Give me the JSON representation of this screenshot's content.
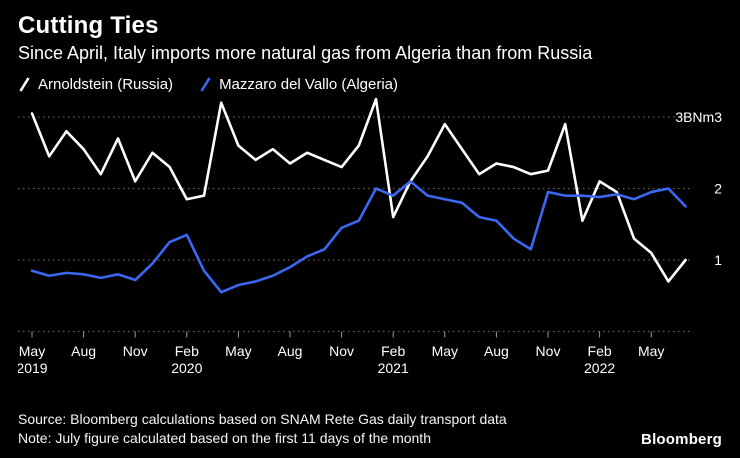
{
  "header": {
    "title": "Cutting Ties",
    "subtitle": "Since April, Italy imports more natural gas from Algeria than from Russia"
  },
  "legend": [
    {
      "label": "Arnoldstein (Russia)",
      "color": "#ffffff"
    },
    {
      "label": "Mazzaro del Vallo (Algeria)",
      "color": "#3a68f2"
    }
  ],
  "footer": {
    "source": "Source: Bloomberg calculations based on SNAM Rete Gas daily transport data",
    "note": "Note: July figure calculated based on the first 11 days of the month",
    "brand": "Bloomberg"
  },
  "chart_data": {
    "type": "line",
    "title": "Cutting Ties",
    "subtitle": "Since April, Italy imports more natural gas from Algeria than from Russia",
    "unit_label": "3BNm3",
    "grid": "dotted-horizontal",
    "legend_position": "top-left",
    "y_axis": {
      "ylim": [
        0,
        3.3
      ],
      "gridlines": [
        1,
        2,
        3
      ],
      "right_labels": [
        {
          "value": 3,
          "label": "3BNm3"
        },
        {
          "value": 2,
          "label": "2"
        },
        {
          "value": 1,
          "label": "1"
        }
      ]
    },
    "x_months": [
      "May 2019",
      "Jun 2019",
      "Jul 2019",
      "Aug 2019",
      "Sep 2019",
      "Oct 2019",
      "Nov 2019",
      "Dec 2019",
      "Jan 2020",
      "Feb 2020",
      "Mar 2020",
      "Apr 2020",
      "May 2020",
      "Jun 2020",
      "Jul 2020",
      "Aug 2020",
      "Sep 2020",
      "Oct 2020",
      "Nov 2020",
      "Dec 2020",
      "Jan 2021",
      "Feb 2021",
      "Mar 2021",
      "Apr 2021",
      "May 2021",
      "Jun 2021",
      "Jul 2021",
      "Aug 2021",
      "Sep 2021",
      "Oct 2021",
      "Nov 2021",
      "Dec 2021",
      "Jan 2022",
      "Feb 2022",
      "Mar 2022",
      "Apr 2022",
      "May 2022",
      "Jun 2022",
      "Jul 2022"
    ],
    "x_ticks": [
      {
        "index": 0,
        "month": "May",
        "year": "2019"
      },
      {
        "index": 3,
        "month": "Aug"
      },
      {
        "index": 6,
        "month": "Nov"
      },
      {
        "index": 9,
        "month": "Feb",
        "year": "2020"
      },
      {
        "index": 12,
        "month": "May"
      },
      {
        "index": 15,
        "month": "Aug"
      },
      {
        "index": 18,
        "month": "Nov"
      },
      {
        "index": 21,
        "month": "Feb",
        "year": "2021"
      },
      {
        "index": 24,
        "month": "May"
      },
      {
        "index": 27,
        "month": "Aug"
      },
      {
        "index": 30,
        "month": "Nov"
      },
      {
        "index": 33,
        "month": "Feb",
        "year": "2022"
      },
      {
        "index": 36,
        "month": "May"
      }
    ],
    "series": [
      {
        "id": "russia",
        "name": "Arnoldstein (Russia)",
        "color": "#ffffff",
        "values": [
          3.05,
          2.45,
          2.8,
          2.55,
          2.2,
          2.7,
          2.1,
          2.5,
          2.3,
          1.85,
          1.9,
          3.2,
          2.6,
          2.4,
          2.55,
          2.35,
          2.5,
          2.4,
          2.3,
          2.6,
          3.25,
          1.6,
          2.1,
          2.45,
          2.9,
          2.55,
          2.2,
          2.35,
          2.3,
          2.2,
          2.25,
          2.9,
          1.55,
          2.1,
          1.95,
          1.3,
          1.1,
          0.7,
          1.0
        ]
      },
      {
        "id": "algeria",
        "name": "Mazzaro del Vallo (Algeria)",
        "color": "#3a68f2",
        "values": [
          0.85,
          0.78,
          0.82,
          0.8,
          0.75,
          0.8,
          0.72,
          0.95,
          1.25,
          1.35,
          0.85,
          0.55,
          0.65,
          0.7,
          0.78,
          0.9,
          1.05,
          1.15,
          1.45,
          1.55,
          2.0,
          1.9,
          2.1,
          1.9,
          1.85,
          1.8,
          1.6,
          1.55,
          1.3,
          1.15,
          1.95,
          1.9,
          1.9,
          1.88,
          1.92,
          1.85,
          1.95,
          2.0,
          1.75
        ]
      }
    ]
  }
}
